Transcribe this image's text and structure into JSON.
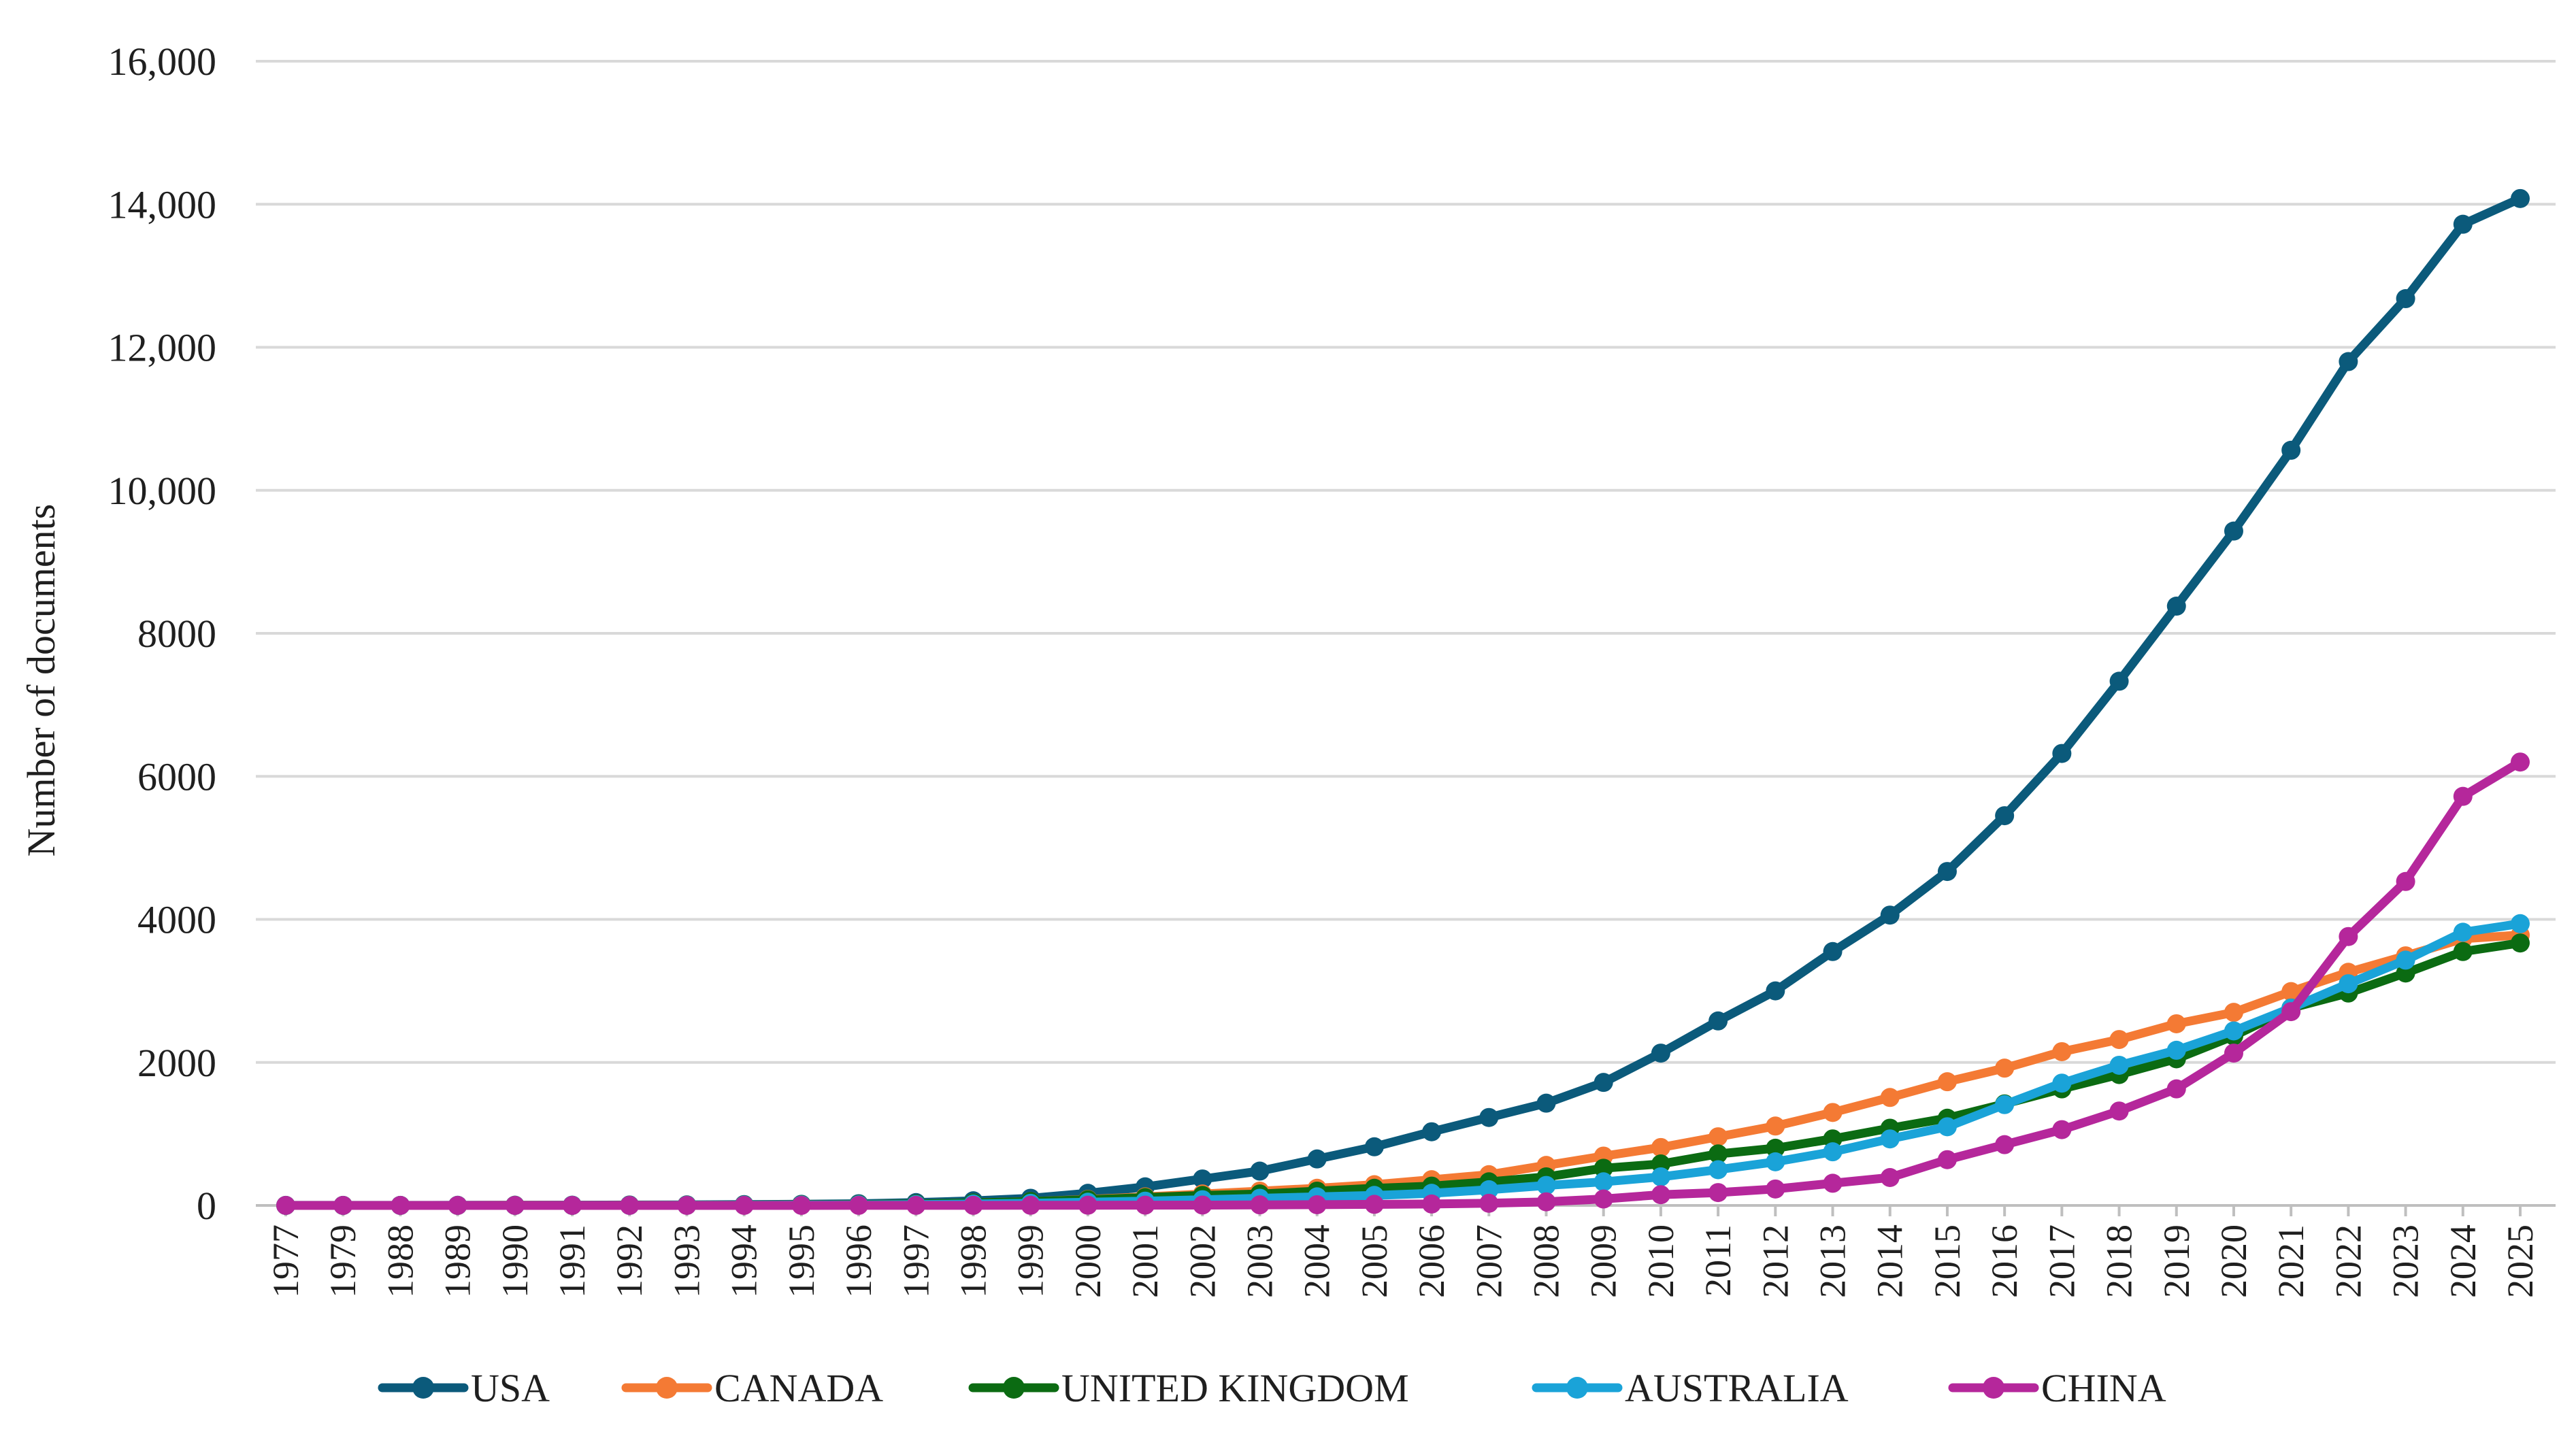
{
  "chart_data": {
    "type": "line",
    "title": "",
    "xlabel": "",
    "ylabel": "Number of documents",
    "ylim": [
      0,
      16000
    ],
    "yticks": [
      0,
      2000,
      4000,
      6000,
      8000,
      10000,
      12000,
      14000,
      16000
    ],
    "ytick_labels": [
      "0",
      "2000",
      "4000",
      "6000",
      "8000",
      "10,000",
      "12,000",
      "14,000",
      "16,000"
    ],
    "grid": true,
    "legend_position": "bottom",
    "categories": [
      "1977",
      "1979",
      "1988",
      "1989",
      "1990",
      "1991",
      "1992",
      "1993",
      "1994",
      "1995",
      "1996",
      "1997",
      "1998",
      "1999",
      "2000",
      "2001",
      "2002",
      "2003",
      "2004",
      "2005",
      "2006",
      "2007",
      "2008",
      "2009",
      "2010",
      "2011",
      "2012",
      "2013",
      "2014",
      "2015",
      "2016",
      "2017",
      "2018",
      "2019",
      "2020",
      "2021",
      "2022",
      "2023",
      "2024",
      "2025"
    ],
    "series": [
      {
        "name": "USA",
        "color": "#0b5a7b",
        "values": [
          1,
          1,
          1,
          2,
          3,
          4,
          6,
          8,
          12,
          16,
          24,
          40,
          65,
          100,
          170,
          260,
          370,
          480,
          650,
          820,
          1030,
          1230,
          1430,
          1720,
          2130,
          2580,
          3000,
          3550,
          4060,
          4670,
          5450,
          6320,
          7330,
          8380,
          9430,
          10560,
          11800,
          12680,
          13720,
          14080
        ]
      },
      {
        "name": "CANADA",
        "color": "#f47a34",
        "values": [
          0,
          0,
          0,
          0,
          1,
          1,
          2,
          3,
          5,
          8,
          12,
          20,
          35,
          55,
          85,
          120,
          160,
          200,
          240,
          290,
          360,
          430,
          560,
          690,
          810,
          960,
          1110,
          1300,
          1510,
          1730,
          1920,
          2150,
          2320,
          2540,
          2700,
          2990,
          3260,
          3490,
          3730,
          3780
        ]
      },
      {
        "name": "UNITED KINGDOM",
        "color": "#0b6b12",
        "values": [
          0,
          0,
          0,
          0,
          1,
          1,
          2,
          3,
          5,
          8,
          12,
          20,
          35,
          55,
          80,
          110,
          140,
          160,
          200,
          240,
          270,
          330,
          400,
          520,
          580,
          720,
          800,
          930,
          1080,
          1220,
          1420,
          1630,
          1830,
          2050,
          2370,
          2760,
          2970,
          3250,
          3550,
          3670
        ]
      },
      {
        "name": "AUSTRALIA",
        "color": "#1aa3d8",
        "values": [
          0,
          0,
          0,
          0,
          0,
          1,
          1,
          2,
          3,
          5,
          8,
          12,
          20,
          30,
          45,
          60,
          80,
          100,
          120,
          140,
          170,
          220,
          280,
          330,
          400,
          500,
          610,
          750,
          930,
          1100,
          1410,
          1710,
          1960,
          2170,
          2440,
          2760,
          3100,
          3430,
          3820,
          3940
        ]
      },
      {
        "name": "CHINA",
        "color": "#b5279b",
        "values": [
          0,
          0,
          0,
          0,
          0,
          0,
          0,
          0,
          0,
          0,
          1,
          1,
          1,
          2,
          3,
          4,
          5,
          8,
          10,
          15,
          20,
          30,
          50,
          90,
          150,
          180,
          230,
          310,
          390,
          640,
          850,
          1060,
          1320,
          1630,
          2130,
          2710,
          3760,
          4530,
          5720,
          6200
        ]
      }
    ]
  }
}
